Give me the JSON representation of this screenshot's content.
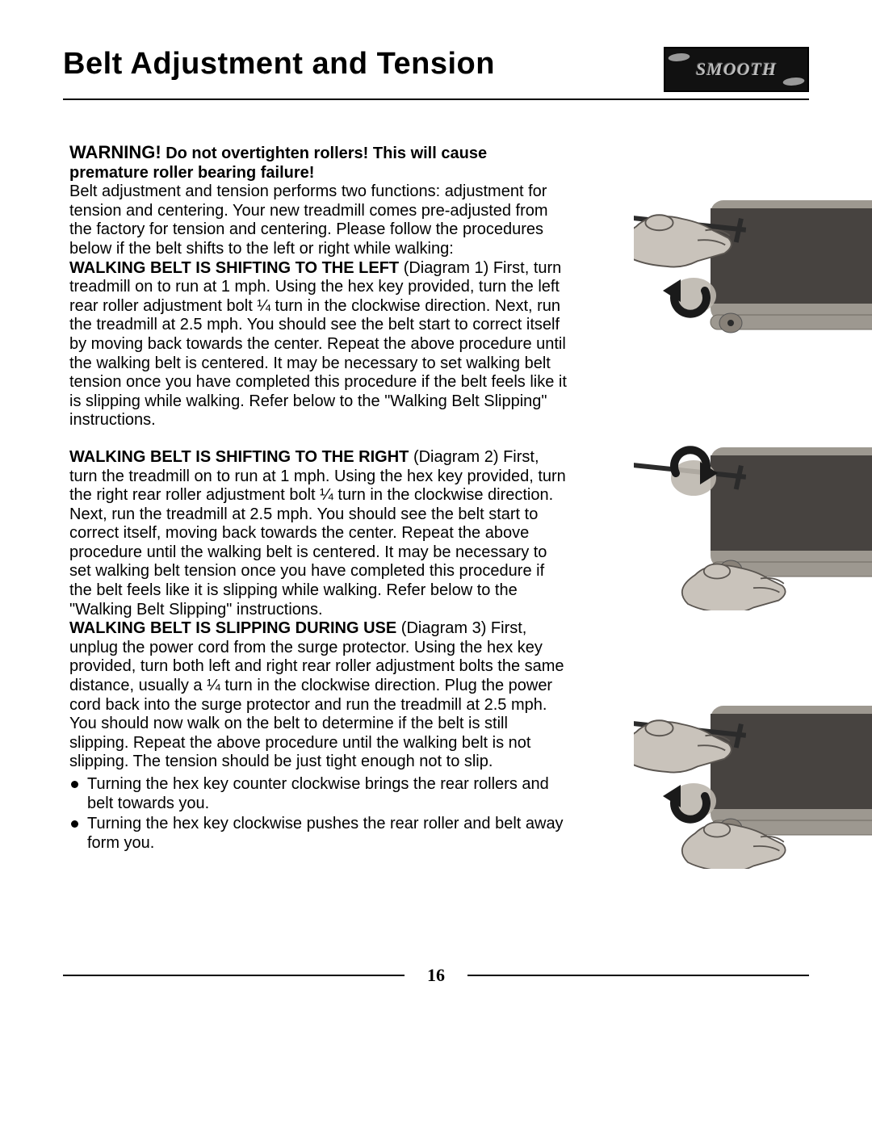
{
  "header": {
    "title": "Belt Adjustment and Tension",
    "logo_text": "SMOOTH"
  },
  "warning": {
    "lead": "WARNING!",
    "text": "Do not overtighten rollers! This will cause premature roller bearing failure!"
  },
  "intro": "Belt adjustment and tension performs two functions: adjustment for tension and centering. Your new treadmill comes pre-adjusted from the factory for tension and centering. Please follow the procedures below if the belt shifts to the left or right while walking:",
  "sections": {
    "left": {
      "heading": "WALKING BELT IS SHIFTING TO THE LEFT",
      "diagram_label": "(Diagram 1)",
      "text": "First, turn treadmill on to run at 1 mph. Using the hex key provided, turn the left rear roller adjustment bolt ¼ turn in the clockwise direction. Next, run the treadmill at 2.5 mph. You should see the belt start to correct itself by moving back towards the center. Repeat the above procedure until the walking belt is centered. It may be necessary to set walking belt tension once you have completed this procedure if the belt feels like it is slipping while walking. Refer  below to the \"Walking Belt Slipping\" instructions."
    },
    "right": {
      "heading": "WALKING BELT IS SHIFTING TO THE RIGHT",
      "diagram_label": "(Diagram 2)",
      "text": "First, turn the treadmill on to run at 1 mph. Using the hex key provided, turn the right rear roller adjustment bolt ¼ turn in the clockwise direction. Next, run the treadmill at 2.5 mph. You should see the belt start to correct itself, moving back towards the center. Repeat the above procedure until the walking belt is centered.  It may be necessary to set walking belt tension once you have completed this procedure if the belt feels like it is slipping while walking. Refer below to the \"Walking Belt Slipping\" instructions."
    },
    "slip": {
      "heading": "WALKING BELT IS SLIPPING DURING USE",
      "diagram_label": "(Diagram 3)",
      "text": "First, unplug the power cord from the surge protector.  Using the hex key provided, turn both left and right rear roller adjustment bolts the same distance, usually a ¼ turn in the clockwise direction. Plug the power cord back into the surge protector and run the treadmill at 2.5 mph. You should now walk on the belt to determine if the belt is still slipping. Repeat the above procedure until the walking belt is not slipping. The tension should be just tight enough not to slip."
    }
  },
  "bullets": [
    "Turning the hex key counter clockwise brings the rear rollers and belt towards you.",
    "Turning the hex key clockwise pushes the rear roller and belt away form you."
  ],
  "diagrams": {
    "d1": {
      "arrow": "ccw",
      "hand": "top"
    },
    "d2": {
      "arrow": "cw",
      "hand": "bottom"
    },
    "d3": {
      "arrow": "ccw",
      "hand": "both"
    }
  },
  "footer": {
    "page_number": "16"
  },
  "colors": {
    "text": "#000000",
    "background": "#ffffff",
    "treadmill_frame": "#9d9890",
    "treadmill_belt": "#474340",
    "hand_fill": "#c9c3bb",
    "hand_shadow": "#5a5550",
    "arrow_fill": "#1a1a1a"
  }
}
